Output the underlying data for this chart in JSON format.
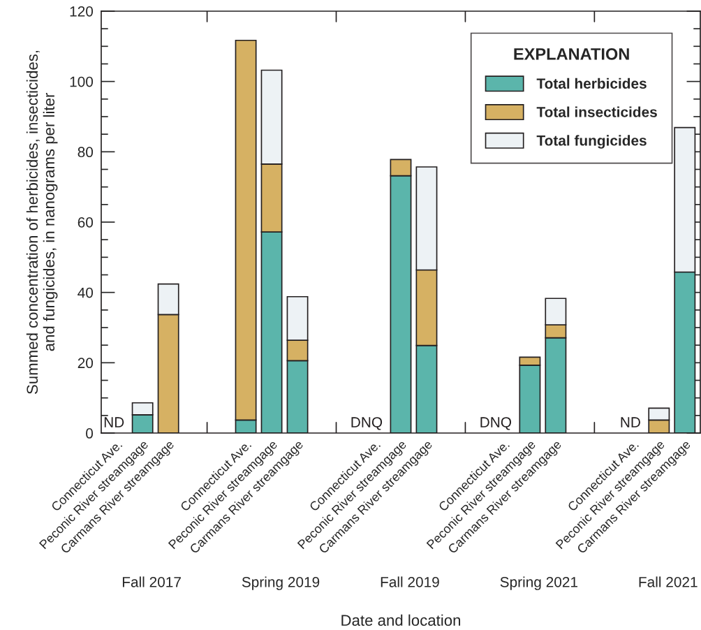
{
  "chart_data": {
    "type": "bar",
    "stacked": true,
    "xlabel": "Date and location",
    "ylabel": "Summed concentration of herbicides, insecticides,\nand fungicides, in nanograms per liter",
    "legend_title": "EXPLANATION",
    "legend": "top right",
    "categories": [
      "Connecticut Ave.",
      "Peconic River streamgage",
      "Carmans River streamgage",
      null,
      null,
      "Connecticut Ave.",
      "Peconic River streamgage",
      "Carmans River streamgage",
      null,
      null,
      "Connecticut Ave.",
      "Peconic River streamgage",
      "Carmans River streamgage",
      null,
      null,
      "Connecticut Ave.",
      "Peconic River streamgage",
      "Carmans River streamgage",
      null,
      null,
      "Connecticut Ave.",
      "Peconic River streamgage",
      "Carmans River streamgage"
    ],
    "series": [
      {
        "name": "Total herbicides",
        "color": "#5bb5ab",
        "values": [
          null,
          5.2,
          null,
          null,
          null,
          3.7,
          57.2,
          20.6,
          null,
          null,
          null,
          73.2,
          24.9,
          null,
          null,
          null,
          19.3,
          27.1,
          null,
          null,
          null,
          null,
          45.8
        ],
        "value_labels": [
          "ND",
          null,
          null,
          null,
          null,
          null,
          null,
          null,
          null,
          null,
          "DNQ",
          null,
          null,
          null,
          null,
          "DNQ",
          null,
          null,
          null,
          null,
          "ND",
          null,
          null
        ]
      },
      {
        "name": "Total insecticides",
        "color": "#d6b163",
        "values": [
          null,
          null,
          33.7,
          null,
          null,
          108.0,
          19.3,
          5.8,
          null,
          null,
          null,
          4.6,
          21.5,
          null,
          null,
          null,
          2.3,
          3.7,
          null,
          null,
          null,
          3.7,
          null
        ]
      },
      {
        "name": "Total fungicides",
        "color": "#edf2f5",
        "values": [
          null,
          3.4,
          8.7,
          null,
          null,
          null,
          26.7,
          12.4,
          null,
          null,
          null,
          null,
          29.3,
          null,
          null,
          null,
          null,
          7.5,
          null,
          null,
          null,
          3.4,
          41.1
        ]
      }
    ],
    "ylim": [
      0,
      120
    ],
    "yticks": [
      0,
      20,
      40,
      60,
      80,
      100,
      120
    ],
    "annotations": [
      "Fall 2017",
      "Spring 2019",
      "Fall 2019",
      "Spring 2021",
      "Fall 2021"
    ]
  }
}
